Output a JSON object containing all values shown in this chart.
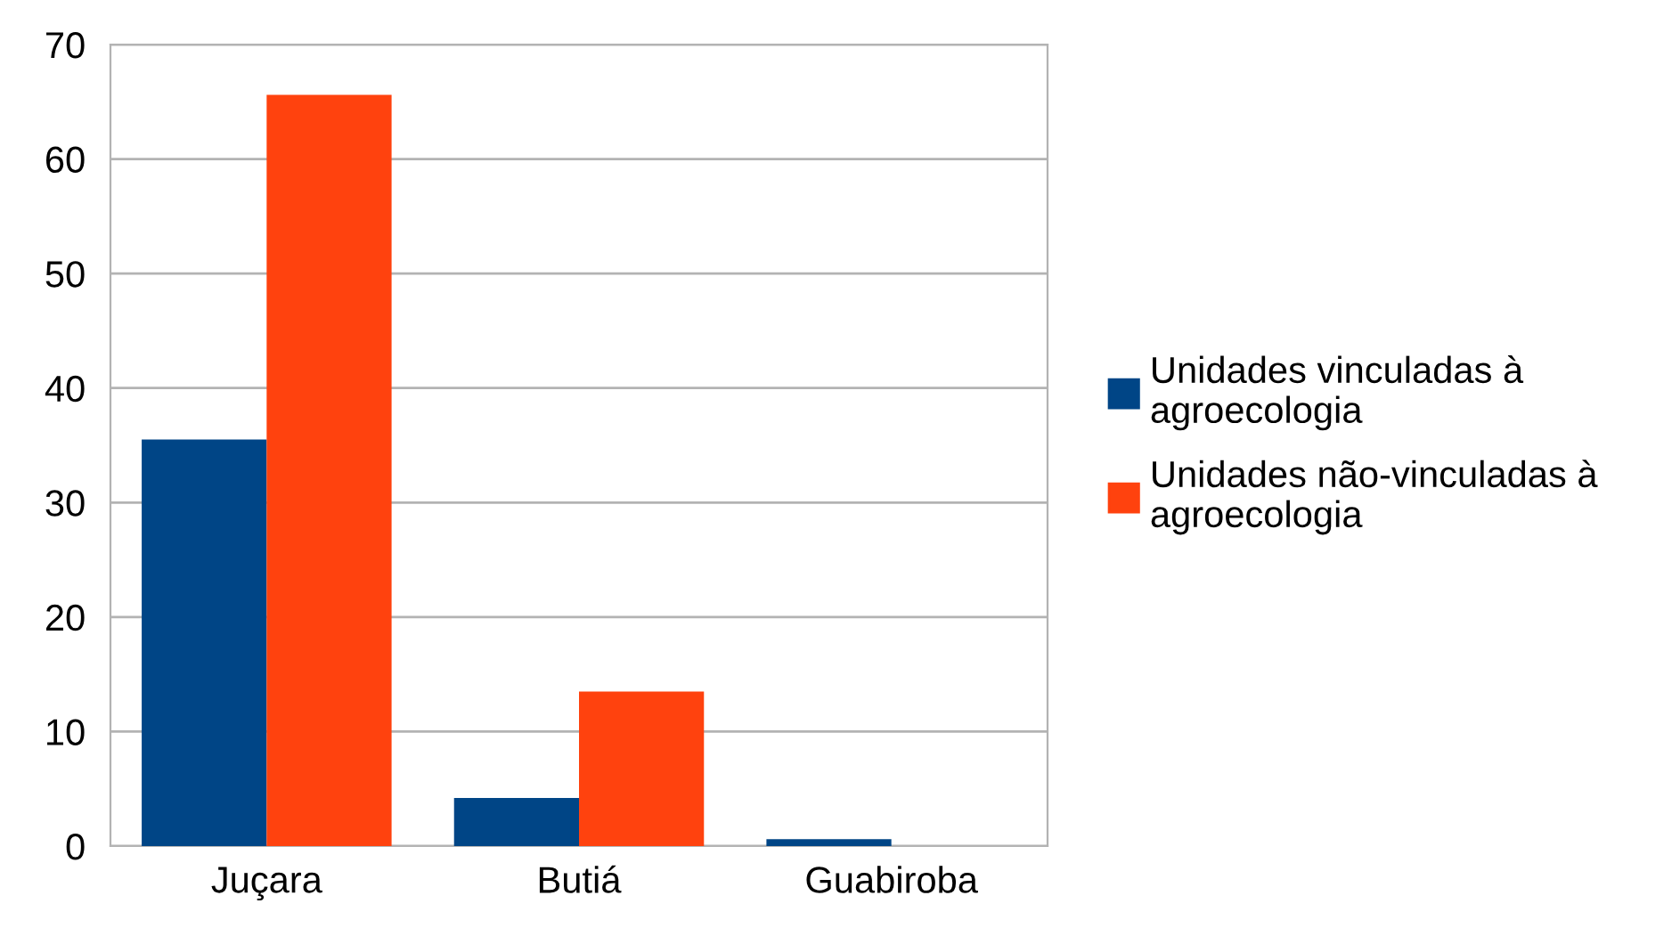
{
  "chart_data": {
    "type": "bar",
    "categories": [
      "Juçara",
      "Butiá",
      "Guabiroba"
    ],
    "series": [
      {
        "name": "Unidades vinculadas à\nagroecologia",
        "color": "#004586",
        "values": [
          35.5,
          4.2,
          0.6
        ]
      },
      {
        "name": "Unidades não-vinculadas à\nagroecologia",
        "color": "#ff420e",
        "values": [
          65.6,
          13.5,
          0
        ]
      }
    ],
    "ylim": [
      0,
      70
    ],
    "yticks": [
      0,
      10,
      20,
      30,
      40,
      50,
      60,
      70
    ],
    "grid": "y",
    "legend": "right"
  }
}
